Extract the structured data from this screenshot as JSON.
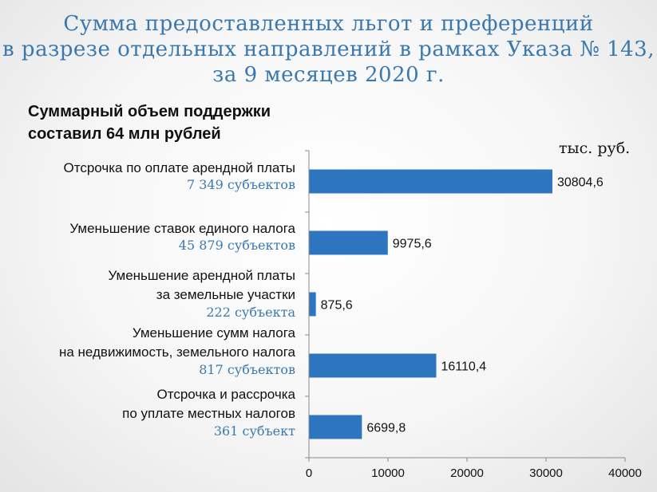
{
  "title": {
    "line1": "Сумма предоставленных льгот и преференций",
    "line2": "в разрезе отдельных направлений в рамках Указа № 143,",
    "line3": "за 9 месяцев 2020 г."
  },
  "subtitle": {
    "line1": "Суммарный объем поддержки",
    "line2": "составил 64 млн рублей"
  },
  "unit": "тыс. руб.",
  "colors": {
    "bar": "#2e75c0",
    "title": "#3a78b0",
    "subjects": "#3a78b0"
  },
  "chart_data": {
    "type": "bar",
    "orientation": "horizontal",
    "categories": [
      {
        "lines": [
          "Отсрочка по оплате арендной платы"
        ],
        "subjects": "7 349 субъектов"
      },
      {
        "lines": [
          "Уменьшение ставок единого налога"
        ],
        "subjects": "45 879 субъектов"
      },
      {
        "lines": [
          "Уменьшение арендной платы",
          "за земельные участки"
        ],
        "subjects": "222 субъекта"
      },
      {
        "lines": [
          "Уменьшение сумм налога",
          "на недвижимость, земельного налога"
        ],
        "subjects": "817 субъектов"
      },
      {
        "lines": [
          "Отсрочка и рассрочка",
          "по уплате местных налогов"
        ],
        "subjects": "361 субъект"
      }
    ],
    "values": [
      30804.6,
      9975.6,
      875.6,
      16110.4,
      6699.8
    ],
    "value_labels": [
      "30804,6",
      "9975,6",
      "875,6",
      "16110,4",
      "6699,8"
    ],
    "xlim": [
      0,
      40000
    ],
    "xticks": [
      0,
      10000,
      20000,
      30000,
      40000
    ],
    "grid": false,
    "legend": "none"
  }
}
